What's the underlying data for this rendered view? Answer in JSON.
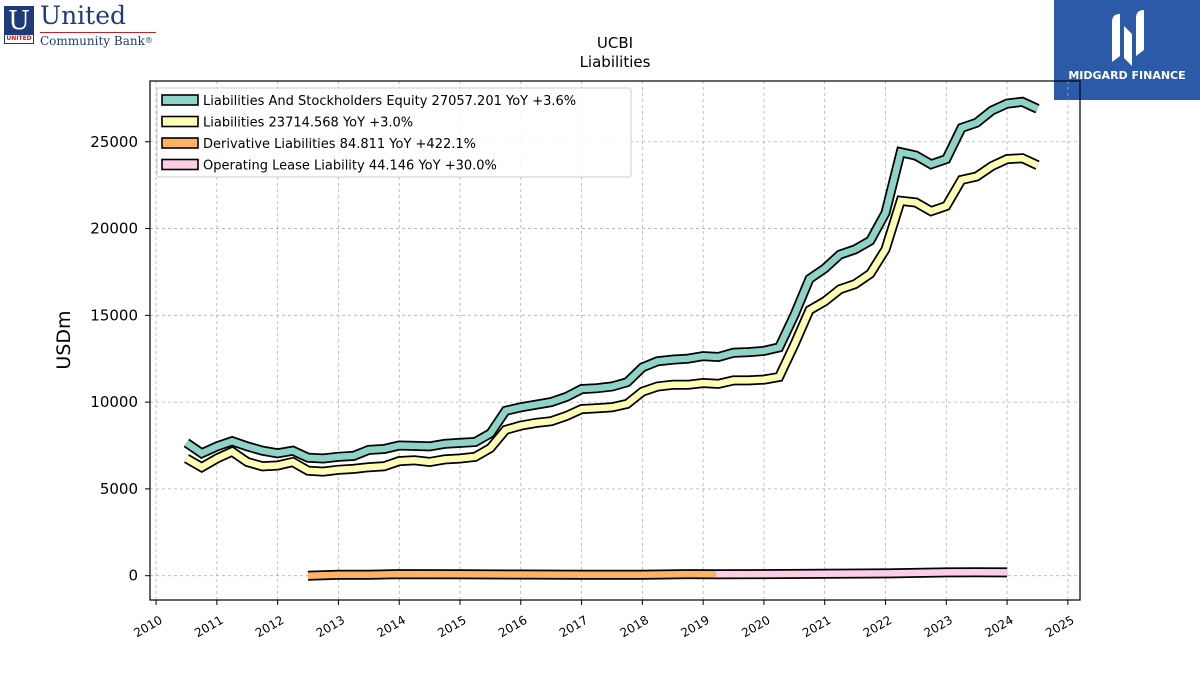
{
  "logos": {
    "left": {
      "mark": "U",
      "tag": "UNITED",
      "name": "United",
      "subtitle": "Community Bank",
      "trademark": "®"
    },
    "right": {
      "name": "MIDGARD FINANCE"
    }
  },
  "chart_data": {
    "type": "line",
    "title": "UCBI",
    "subtitle": "Liabilities",
    "ylabel": "USDm",
    "xlim": [
      2009.9,
      2025.2
    ],
    "ylim": [
      -1400,
      28500
    ],
    "xticks": [
      2010,
      2011,
      2012,
      2013,
      2014,
      2015,
      2016,
      2017,
      2018,
      2019,
      2020,
      2021,
      2022,
      2023,
      2024,
      2025
    ],
    "yticks": [
      0,
      5000,
      10000,
      15000,
      20000,
      25000
    ],
    "grid": true,
    "legend_position": "top-left",
    "series": [
      {
        "name": "Liabilities And Stockholders Equity  27057.201 YoY +3.6%",
        "color": "#8dd3c7",
        "points": [
          [
            2010.5,
            7650
          ],
          [
            2010.75,
            7050
          ],
          [
            2011.0,
            7450
          ],
          [
            2011.25,
            7750
          ],
          [
            2011.5,
            7450
          ],
          [
            2011.75,
            7200
          ],
          [
            2012.0,
            7050
          ],
          [
            2012.25,
            7200
          ],
          [
            2012.5,
            6800
          ],
          [
            2012.75,
            6750
          ],
          [
            2013.0,
            6850
          ],
          [
            2013.25,
            6900
          ],
          [
            2013.5,
            7250
          ],
          [
            2013.75,
            7300
          ],
          [
            2014.0,
            7500
          ],
          [
            2014.25,
            7480
          ],
          [
            2014.5,
            7450
          ],
          [
            2014.75,
            7600
          ],
          [
            2015.0,
            7650
          ],
          [
            2015.25,
            7700
          ],
          [
            2015.5,
            8200
          ],
          [
            2015.75,
            9500
          ],
          [
            2016.0,
            9700
          ],
          [
            2016.25,
            9850
          ],
          [
            2016.5,
            10000
          ],
          [
            2016.75,
            10300
          ],
          [
            2017.0,
            10750
          ],
          [
            2017.25,
            10800
          ],
          [
            2017.5,
            10900
          ],
          [
            2017.75,
            11150
          ],
          [
            2018.0,
            12000
          ],
          [
            2018.25,
            12350
          ],
          [
            2018.5,
            12450
          ],
          [
            2018.75,
            12500
          ],
          [
            2019.0,
            12650
          ],
          [
            2019.25,
            12600
          ],
          [
            2019.5,
            12850
          ],
          [
            2019.75,
            12880
          ],
          [
            2020.0,
            12950
          ],
          [
            2020.25,
            13150
          ],
          [
            2020.5,
            15000
          ],
          [
            2020.75,
            17100
          ],
          [
            2021.0,
            17700
          ],
          [
            2021.25,
            18500
          ],
          [
            2021.5,
            18800
          ],
          [
            2021.75,
            19300
          ],
          [
            2022.0,
            20900
          ],
          [
            2022.25,
            24400
          ],
          [
            2022.5,
            24200
          ],
          [
            2022.75,
            23700
          ],
          [
            2023.0,
            24000
          ],
          [
            2023.25,
            25800
          ],
          [
            2023.5,
            26100
          ],
          [
            2023.75,
            26800
          ],
          [
            2024.0,
            27200
          ],
          [
            2024.25,
            27300
          ],
          [
            2024.5,
            26900
          ]
        ]
      },
      {
        "name": "Liabilities  23714.568 YoY +3.0%",
        "color": "#ffffb3",
        "points": [
          [
            2010.5,
            6750
          ],
          [
            2010.75,
            6250
          ],
          [
            2011.0,
            6750
          ],
          [
            2011.25,
            7150
          ],
          [
            2011.5,
            6550
          ],
          [
            2011.75,
            6300
          ],
          [
            2012.0,
            6350
          ],
          [
            2012.25,
            6550
          ],
          [
            2012.5,
            6050
          ],
          [
            2012.75,
            6000
          ],
          [
            2013.0,
            6100
          ],
          [
            2013.25,
            6150
          ],
          [
            2013.5,
            6250
          ],
          [
            2013.75,
            6300
          ],
          [
            2014.0,
            6600
          ],
          [
            2014.25,
            6650
          ],
          [
            2014.5,
            6550
          ],
          [
            2014.75,
            6700
          ],
          [
            2015.0,
            6750
          ],
          [
            2015.25,
            6850
          ],
          [
            2015.5,
            7350
          ],
          [
            2015.75,
            8400
          ],
          [
            2016.0,
            8650
          ],
          [
            2016.25,
            8800
          ],
          [
            2016.5,
            8900
          ],
          [
            2016.75,
            9200
          ],
          [
            2017.0,
            9600
          ],
          [
            2017.25,
            9650
          ],
          [
            2017.5,
            9700
          ],
          [
            2017.75,
            9900
          ],
          [
            2018.0,
            10600
          ],
          [
            2018.25,
            10900
          ],
          [
            2018.5,
            11000
          ],
          [
            2018.75,
            11000
          ],
          [
            2019.0,
            11100
          ],
          [
            2019.25,
            11050
          ],
          [
            2019.5,
            11250
          ],
          [
            2019.75,
            11250
          ],
          [
            2020.0,
            11300
          ],
          [
            2020.25,
            11450
          ],
          [
            2020.5,
            13300
          ],
          [
            2020.75,
            15300
          ],
          [
            2021.0,
            15800
          ],
          [
            2021.25,
            16500
          ],
          [
            2021.5,
            16800
          ],
          [
            2021.75,
            17400
          ],
          [
            2022.0,
            18800
          ],
          [
            2022.25,
            21600
          ],
          [
            2022.5,
            21500
          ],
          [
            2022.75,
            21000
          ],
          [
            2023.0,
            21300
          ],
          [
            2023.25,
            22800
          ],
          [
            2023.5,
            23000
          ],
          [
            2023.75,
            23600
          ],
          [
            2024.0,
            24000
          ],
          [
            2024.25,
            24050
          ],
          [
            2024.5,
            23650
          ]
        ]
      },
      {
        "name": "Derivative Liabilities  84.811 YoY +422.1%",
        "color": "#fdb462",
        "points": [
          [
            2012.5,
            0
          ],
          [
            2013.0,
            50
          ],
          [
            2013.5,
            60
          ],
          [
            2014.0,
            90
          ],
          [
            2015.0,
            80
          ],
          [
            2016.0,
            70
          ],
          [
            2017.0,
            60
          ],
          [
            2018.0,
            60
          ],
          [
            2018.75,
            90
          ],
          [
            2019.2,
            85
          ]
        ]
      },
      {
        "name": "Operating Lease Liability  44.146 YoY +30.0%",
        "color": "#fccde5",
        "points": [
          [
            2019.2,
            80
          ],
          [
            2020.0,
            90
          ],
          [
            2021.0,
            110
          ],
          [
            2022.0,
            130
          ],
          [
            2022.5,
            160
          ],
          [
            2023.0,
            190
          ],
          [
            2023.5,
            200
          ],
          [
            2024.0,
            190
          ]
        ]
      }
    ]
  }
}
